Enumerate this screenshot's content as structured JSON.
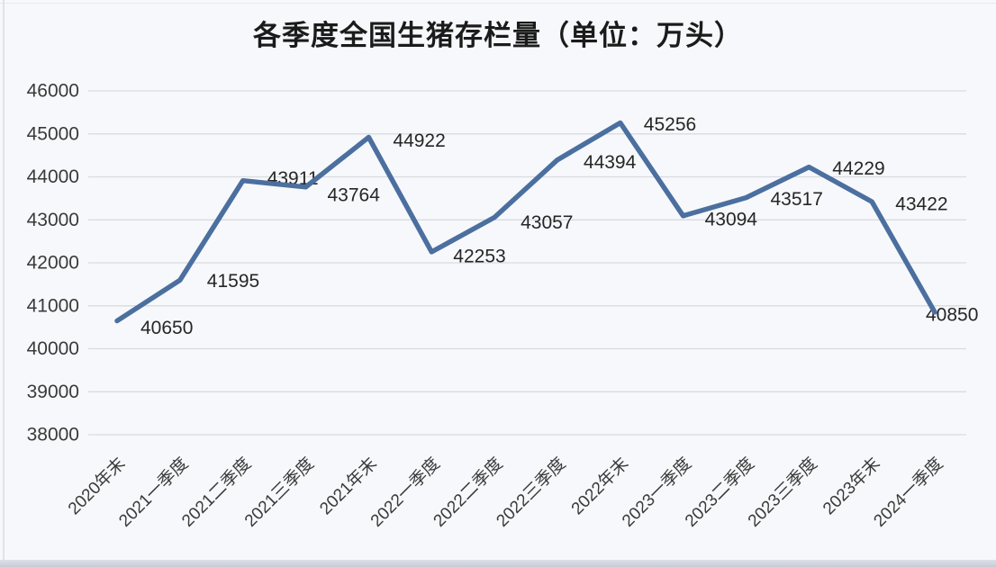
{
  "page": {
    "background": "#f7f8fb"
  },
  "chart_data": {
    "type": "line",
    "title": "各季度全国生猪存栏量（单位：万头）",
    "categories": [
      "2020年末",
      "2021一季度",
      "2021二季度",
      "2021三季度",
      "2021年末",
      "2022一季度",
      "2022二季度",
      "2022三季度",
      "2022年末",
      "2023一季度",
      "2023二季度",
      "2023三季度",
      "2023年末",
      "2024一季度"
    ],
    "values": [
      40650,
      41595,
      43911,
      43764,
      44922,
      42253,
      43057,
      44394,
      45256,
      43094,
      43517,
      44229,
      43422,
      40850
    ],
    "data_labels_visible": true,
    "xlabel": "",
    "ylabel": "",
    "ylim": [
      38000,
      46000
    ],
    "yticks": [
      38000,
      39000,
      40000,
      41000,
      42000,
      43000,
      44000,
      45000,
      46000
    ],
    "grid": true,
    "legend": "none",
    "x_label_rotation_deg": 45,
    "line_color": "#4b6f9f",
    "label_color": "#262626",
    "axis_text_color": "#3a3a3a",
    "gridline_color": "#d9dbe0"
  }
}
